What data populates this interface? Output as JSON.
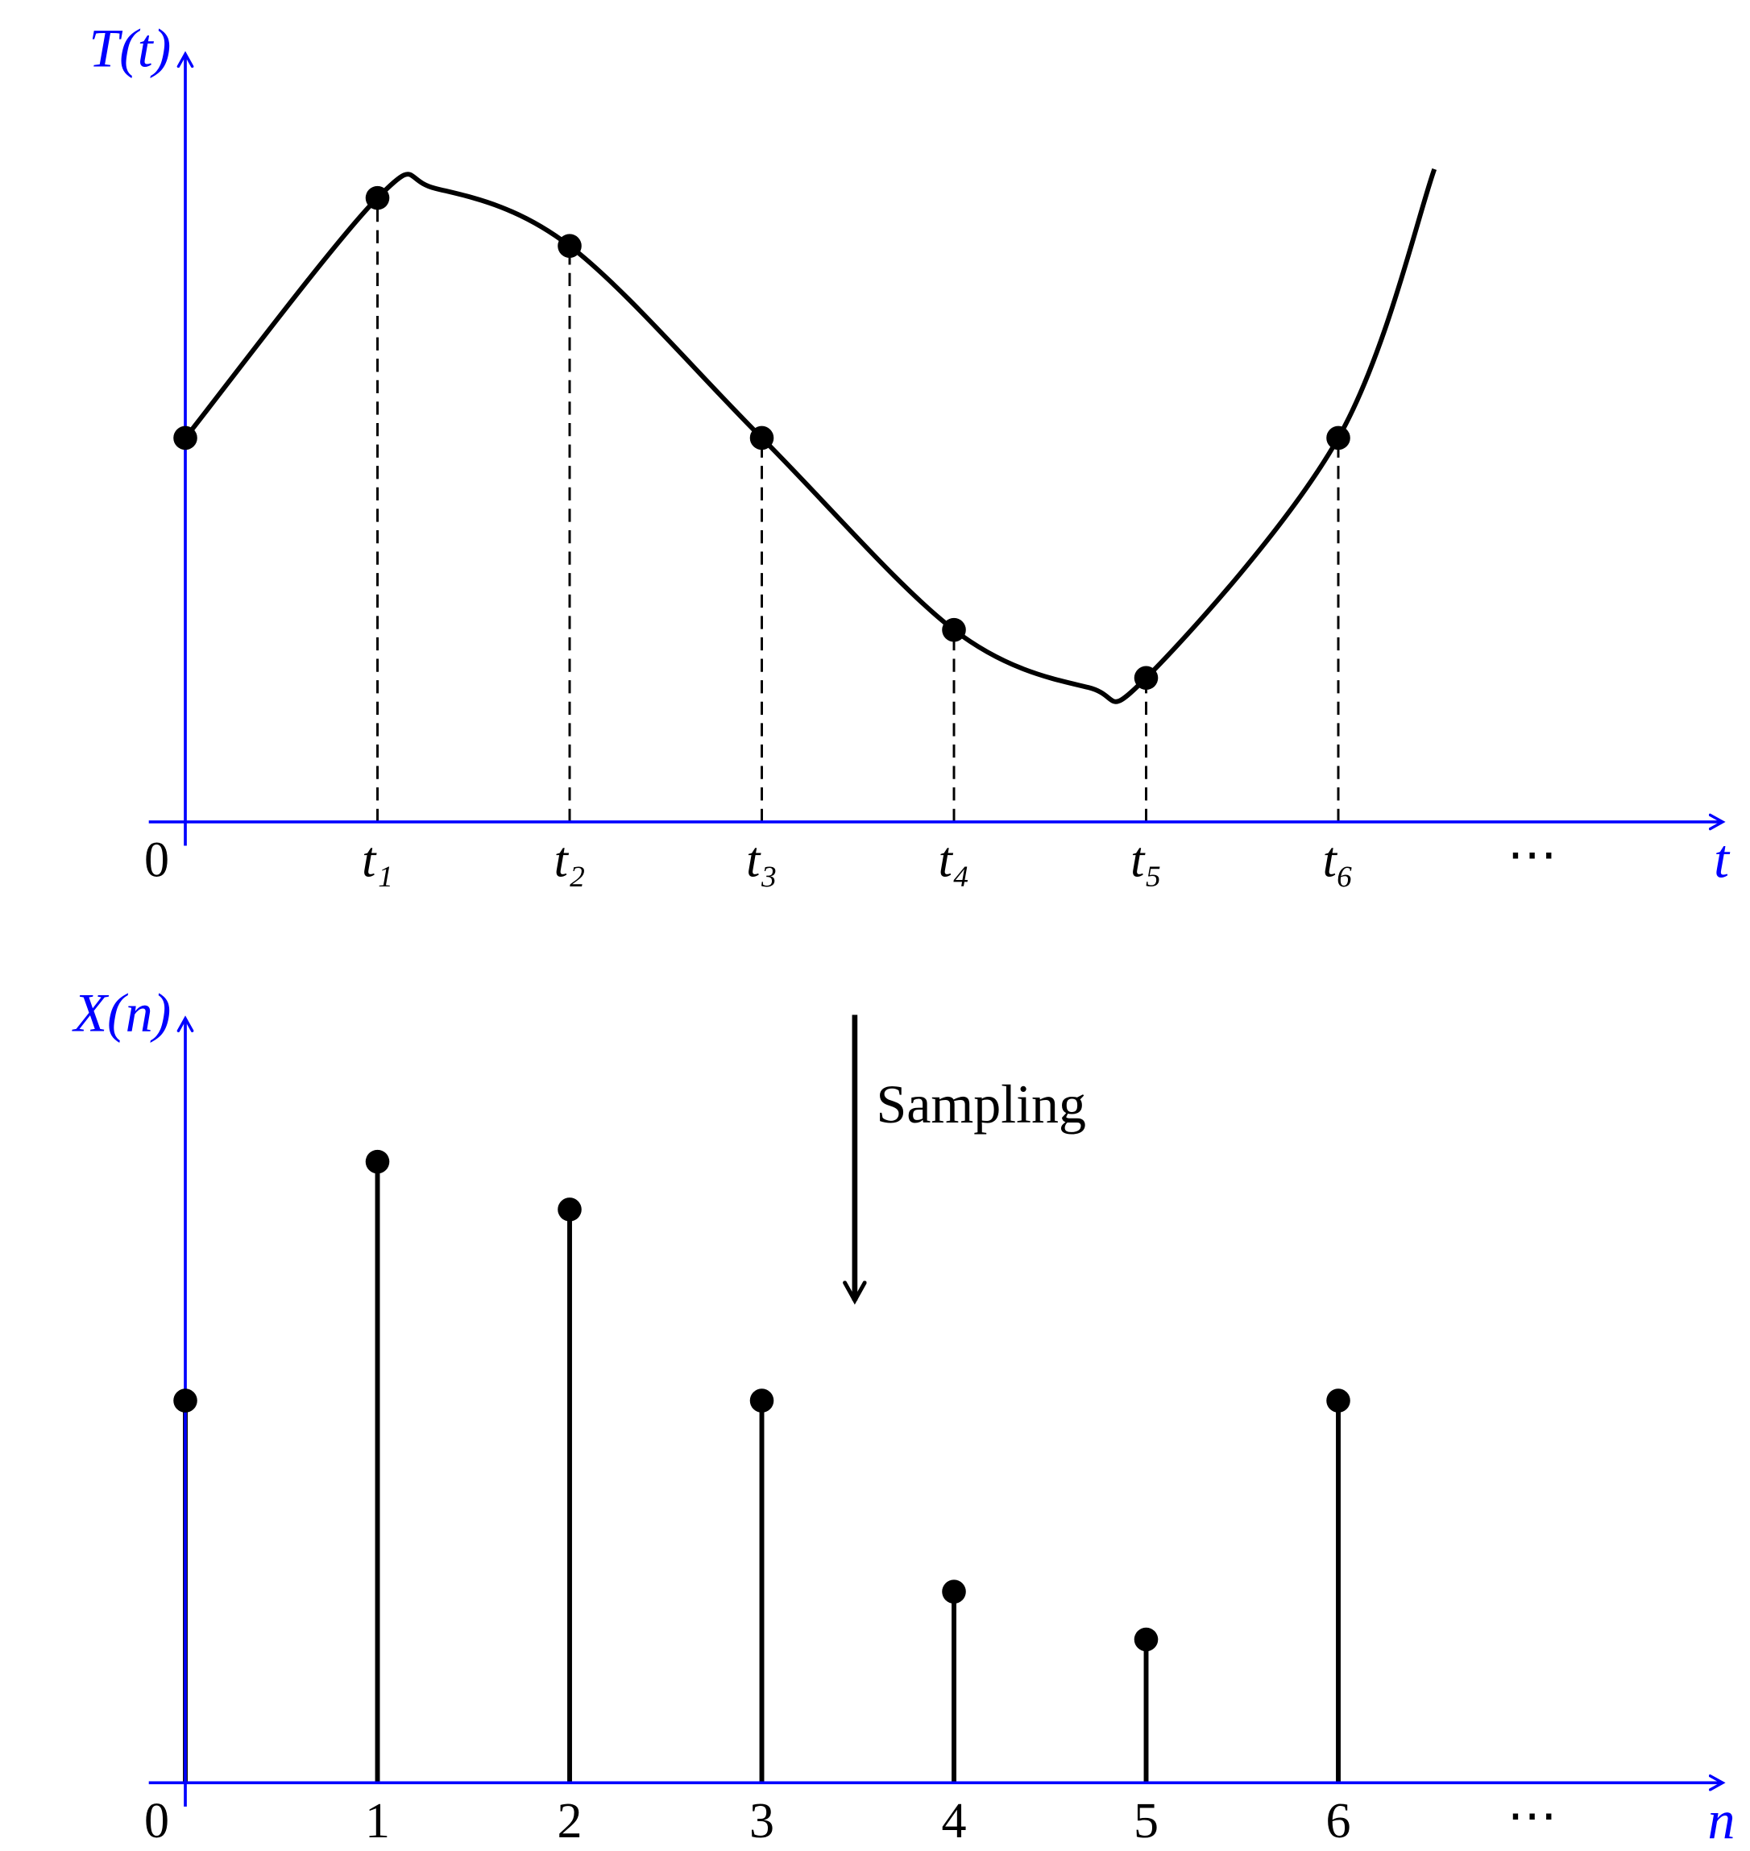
{
  "chart_data": [
    {
      "type": "line",
      "x_label": "t",
      "y_label": "T(t)",
      "axis_color": "#0000ff",
      "xlim": [
        -0.19,
        8
      ],
      "ylim": [
        0,
        8
      ],
      "xticks": [
        0,
        {
          "value": 1,
          "label": "t₁"
        },
        {
          "value": 2,
          "label": "t₂"
        },
        {
          "value": 3,
          "label": "t₃"
        },
        {
          "value": 4,
          "label": "t₄"
        },
        {
          "value": 5,
          "label": "t₅"
        },
        {
          "value": 6,
          "label": "t₆"
        }
      ],
      "annotation": "⋯",
      "curve": {
        "color": "#000000",
        "x": [
          0,
          1,
          1.3,
          2,
          3,
          4,
          4.7,
          5,
          6,
          6.5
        ],
        "values": [
          4,
          6.5,
          6.6,
          6,
          4,
          2,
          1.4,
          1.5,
          4,
          6.8
        ]
      },
      "samples": {
        "color": "#000000",
        "x": [
          0,
          1,
          2,
          3,
          4,
          5,
          6
        ],
        "values": [
          4,
          6.5,
          6,
          4,
          2,
          1.5,
          4
        ]
      }
    },
    {
      "type": "stem",
      "x_label": "n",
      "y_label": "X(n)",
      "axis_color": "#0000ff",
      "xlim": [
        -0.19,
        8
      ],
      "ylim": [
        0,
        8
      ],
      "xticks": [
        0,
        1,
        2,
        3,
        4,
        5,
        6
      ],
      "annotation": "⋯",
      "arrow_label": "Sampling",
      "samples": {
        "color": "#000000",
        "x": [
          0,
          1,
          2,
          3,
          4,
          5,
          6
        ],
        "values": [
          4,
          6.5,
          6,
          4,
          2,
          1.5,
          4
        ]
      }
    }
  ]
}
